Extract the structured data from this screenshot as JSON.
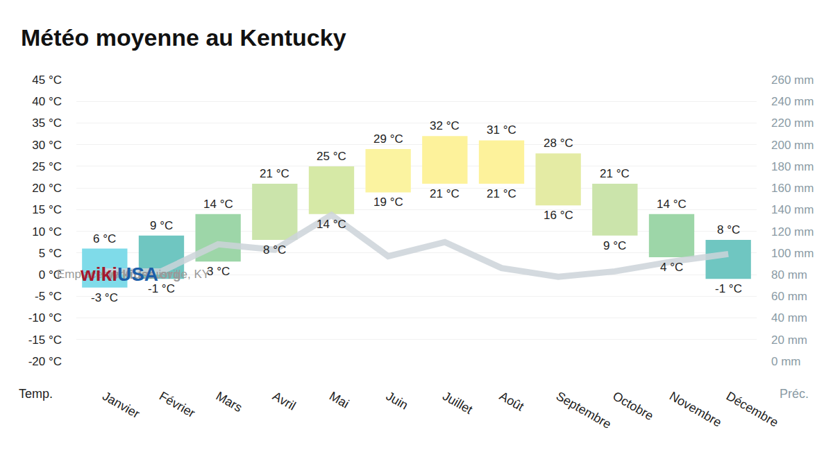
{
  "chart_data": {
    "type": "bar",
    "title": "Météo moyenne au Kentucky",
    "categories": [
      "Janvier",
      "Février",
      "Mars",
      "Avril",
      "Mai",
      "Juin",
      "Juillet",
      "Août",
      "Septembre",
      "Octobre",
      "Novembre",
      "Décembre"
    ],
    "series": [
      {
        "type": "bar",
        "values": [
          6,
          9,
          14,
          21,
          25,
          29,
          32,
          31,
          28,
          21,
          14,
          8
        ],
        "value_labels": [
          "6 °C",
          "9 °C",
          "14 °C",
          "21 °C",
          "25 °C",
          "29 °C",
          "32 °C",
          "31 °C",
          "28 °C",
          "21 °C",
          "14 °C",
          "8 °C"
        ],
        "low": [
          -3,
          -1,
          3,
          8,
          14,
          19,
          21,
          21,
          16,
          9,
          4,
          -1
        ],
        "low_labels": [
          "-3 °C",
          "-1 °C",
          "3 °C",
          "8 °C",
          "14 °C",
          "19 °C",
          "21 °C",
          "21 °C",
          "16 °C",
          "9 °C",
          "4 °C",
          "-1 °C"
        ],
        "colors": [
          "#7fdbe9",
          "#6fc6c1",
          "#9dd6a8",
          "#cbe4ab",
          "#d6e9a6",
          "#fbf3a0",
          "#fdf29b",
          "#fdf29b",
          "#e4eba4",
          "#cbe4ab",
          "#9dd6a8",
          "#6fc6c1"
        ]
      },
      {
        "type": "line",
        "axis": "y2",
        "color": "#ccd4d9",
        "values": [
          83,
          83,
          108,
          103,
          135,
          97,
          110,
          86,
          78,
          83,
          92,
          99
        ]
      }
    ],
    "ylabel": "Temp.",
    "y2label": "Préc.",
    "ylim": [
      -20,
      45
    ],
    "yticks": [
      {
        "value": -20,
        "label": "-20 °C"
      },
      {
        "value": -15,
        "label": "-15 °C"
      },
      {
        "value": -10,
        "label": "-10 °C"
      },
      {
        "value": -5,
        "label": "-5 °C"
      },
      {
        "value": 0,
        "label": "0 °C"
      },
      {
        "value": 5,
        "label": "5 °C"
      },
      {
        "value": 10,
        "label": "10 °C"
      },
      {
        "value": 15,
        "label": "15 °C"
      },
      {
        "value": 20,
        "label": "20 °C"
      },
      {
        "value": 25,
        "label": "25 °C"
      },
      {
        "value": 30,
        "label": "30 °C"
      },
      {
        "value": 35,
        "label": "35 °C"
      },
      {
        "value": 40,
        "label": "40 °C"
      },
      {
        "value": 45,
        "label": "45 °C"
      }
    ],
    "y2lim": [
      0,
      260
    ],
    "y2ticks": [
      {
        "value": 0,
        "label": "0 mm"
      },
      {
        "value": 20,
        "label": "20 mm"
      },
      {
        "value": 40,
        "label": "40 mm"
      },
      {
        "value": 60,
        "label": "60 mm"
      },
      {
        "value": 80,
        "label": "80 mm"
      },
      {
        "value": 100,
        "label": "100 mm"
      },
      {
        "value": 120,
        "label": "120 mm"
      },
      {
        "value": 140,
        "label": "140 mm"
      },
      {
        "value": 160,
        "label": "160 mm"
      },
      {
        "value": 180,
        "label": "180 mm"
      },
      {
        "value": 200,
        "label": "200 mm"
      },
      {
        "value": 220,
        "label": "220 mm"
      },
      {
        "value": 240,
        "label": "240 mm"
      },
      {
        "value": 260,
        "label": "260 mm"
      }
    ],
    "grid": true,
    "data_labels": true,
    "source": "wikiusa.org",
    "note": "Emplacement : Louisville, KY",
    "logo": [
      "wiki",
      "USA"
    ]
  }
}
